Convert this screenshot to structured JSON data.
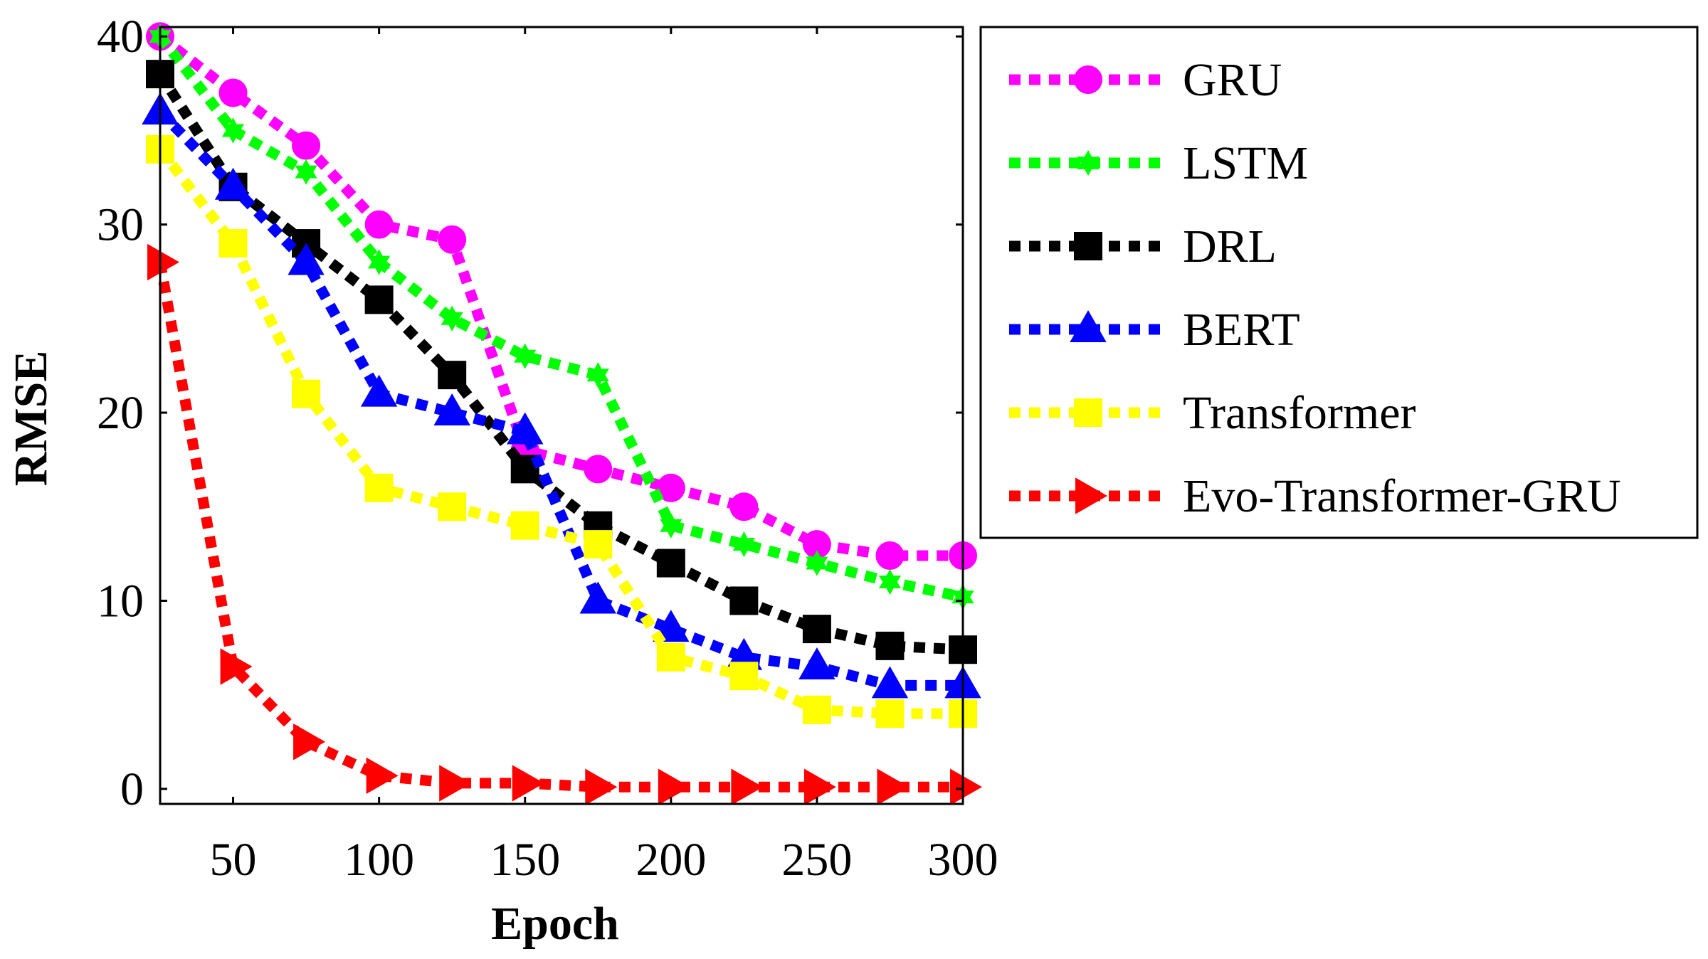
{
  "chart_data": {
    "type": "line",
    "title": "",
    "xlabel": "Epoch",
    "ylabel": "RMSE",
    "xlim": [
      25,
      300
    ],
    "ylim": [
      -0.8,
      40.5
    ],
    "xticks": [
      50,
      100,
      150,
      200,
      250,
      300
    ],
    "yticks": [
      0,
      10,
      20,
      30,
      40
    ],
    "x": [
      25,
      50,
      75,
      100,
      125,
      150,
      175,
      200,
      225,
      250,
      275,
      300
    ],
    "legend_position": "top-right (outside)",
    "series": [
      {
        "name": "GRU",
        "color": "#ff00ff",
        "marker": "circle",
        "values": [
          40,
          37,
          34.2,
          30,
          29.2,
          18,
          17,
          16,
          15,
          13,
          12.4,
          12.4
        ]
      },
      {
        "name": "LSTM",
        "color": "#00ff00",
        "marker": "hexagram",
        "values": [
          40,
          35,
          32.8,
          28,
          25,
          23,
          22,
          14,
          13,
          12,
          11,
          10.2
        ]
      },
      {
        "name": "DRL",
        "color": "#000000",
        "marker": "square",
        "values": [
          38,
          32,
          29,
          26,
          22,
          17,
          14,
          12,
          10,
          8.5,
          7.6,
          7.4
        ]
      },
      {
        "name": "BERT",
        "color": "#0000ff",
        "marker": "triangle-up",
        "values": [
          36,
          32,
          28,
          21,
          20,
          19,
          10,
          8.5,
          7,
          6.5,
          5.5,
          5.5
        ]
      },
      {
        "name": "Transformer",
        "color": "#ffff00",
        "marker": "square",
        "values": [
          34,
          29,
          21,
          16,
          15,
          14,
          13,
          7,
          6,
          4.2,
          4,
          4
        ]
      },
      {
        "name": "Evo-Transformer-GRU",
        "color": "#ff0000",
        "marker": "triangle-right",
        "values": [
          28,
          6.5,
          2.5,
          0.7,
          0.3,
          0.3,
          0.1,
          0.1,
          0.1,
          0.1,
          0.1,
          0.1
        ]
      }
    ]
  }
}
